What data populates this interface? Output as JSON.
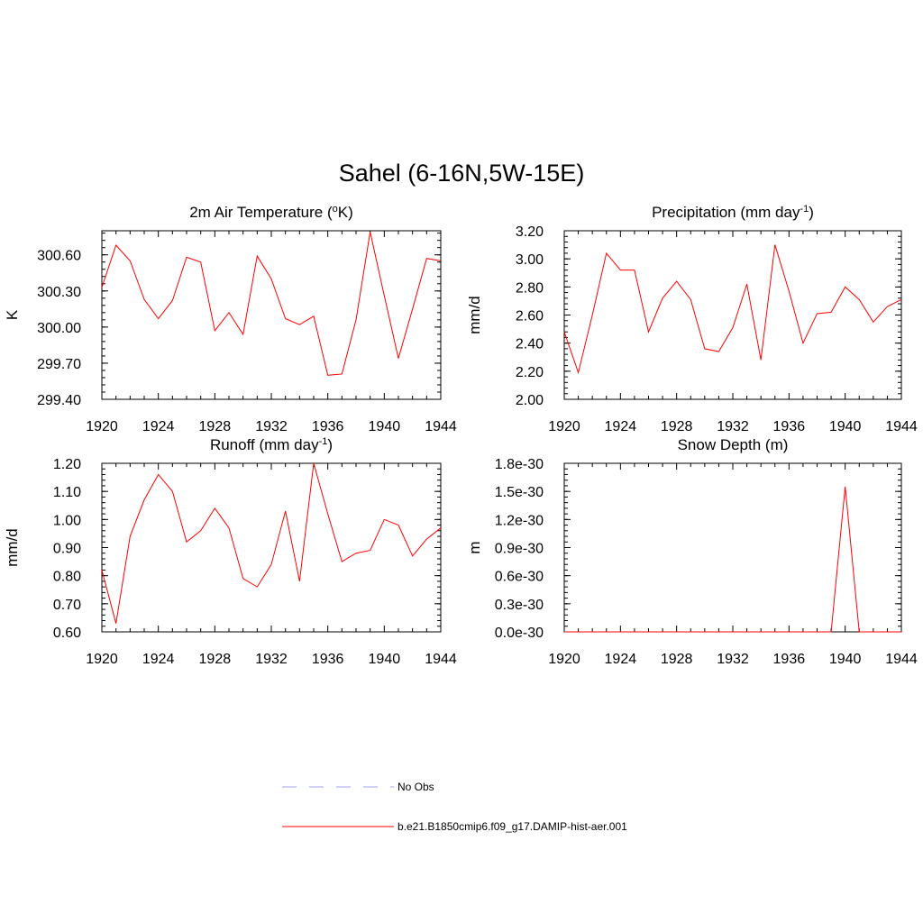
{
  "title": "Sahel (6-16N,5W-15E)",
  "chart_data": [
    {
      "type": "line",
      "title": "2m Air Temperature (oK)",
      "title_parts": [
        {
          "t": "2m Air Temperature ("
        },
        {
          "t": "o",
          "sup": true
        },
        {
          "t": "K)"
        }
      ],
      "ylabel": "K",
      "xlim": [
        1920,
        1944
      ],
      "ylim": [
        299.4,
        300.8
      ],
      "xticks": [
        1920,
        1924,
        1928,
        1932,
        1936,
        1940,
        1944
      ],
      "xtick_labels": [
        "1920",
        "1924",
        "1928",
        "1932",
        "1936",
        "1940",
        "1944"
      ],
      "yticks": [
        299.4,
        299.7,
        300.0,
        300.3,
        300.6
      ],
      "ytick_labels": [
        "299.40",
        "299.70",
        "300.00",
        "300.30",
        "300.60"
      ],
      "x": [
        1920,
        1921,
        1922,
        1923,
        1924,
        1925,
        1926,
        1927,
        1928,
        1929,
        1930,
        1931,
        1932,
        1933,
        1934,
        1935,
        1936,
        1937,
        1938,
        1939,
        1940,
        1941,
        1942,
        1943,
        1944
      ],
      "series": [
        {
          "color": "#ff0000",
          "values": [
            300.33,
            300.68,
            300.55,
            300.23,
            300.07,
            300.22,
            300.58,
            300.54,
            299.97,
            300.12,
            299.94,
            300.59,
            300.4,
            300.07,
            300.02,
            300.09,
            299.6,
            299.61,
            300.06,
            300.79,
            300.26,
            299.74,
            300.15,
            300.57,
            300.55
          ]
        }
      ]
    },
    {
      "type": "line",
      "title": "Precipitation (mm day-1)",
      "title_parts": [
        {
          "t": "Precipitation (mm day"
        },
        {
          "t": "-1",
          "sup": true
        },
        {
          "t": ")"
        }
      ],
      "ylabel": "mm/d",
      "xlim": [
        1920,
        1944
      ],
      "ylim": [
        2.0,
        3.2
      ],
      "xticks": [
        1920,
        1924,
        1928,
        1932,
        1936,
        1940,
        1944
      ],
      "xtick_labels": [
        "1920",
        "1924",
        "1928",
        "1932",
        "1936",
        "1940",
        "1944"
      ],
      "yticks": [
        2.0,
        2.2,
        2.4,
        2.6,
        2.8,
        3.0,
        3.2
      ],
      "ytick_labels": [
        "2.00",
        "2.20",
        "2.40",
        "2.60",
        "2.80",
        "3.00",
        "3.20"
      ],
      "x": [
        1920,
        1921,
        1922,
        1923,
        1924,
        1925,
        1926,
        1927,
        1928,
        1929,
        1930,
        1931,
        1932,
        1933,
        1934,
        1935,
        1936,
        1937,
        1938,
        1939,
        1940,
        1941,
        1942,
        1943,
        1944
      ],
      "series": [
        {
          "color": "#ff0000",
          "values": [
            2.48,
            2.19,
            2.6,
            3.04,
            2.92,
            2.92,
            2.48,
            2.72,
            2.84,
            2.71,
            2.36,
            2.34,
            2.51,
            2.82,
            2.28,
            3.1,
            2.77,
            2.4,
            2.61,
            2.62,
            2.8,
            2.71,
            2.55,
            2.66,
            2.71
          ]
        }
      ]
    },
    {
      "type": "line",
      "title": "Runoff (mm day-1)",
      "title_parts": [
        {
          "t": "Runoff (mm day"
        },
        {
          "t": "-1",
          "sup": true
        },
        {
          "t": ")"
        }
      ],
      "ylabel": "mm/d",
      "xlim": [
        1920,
        1944
      ],
      "ylim": [
        0.6,
        1.2
      ],
      "xticks": [
        1920,
        1924,
        1928,
        1932,
        1936,
        1940,
        1944
      ],
      "xtick_labels": [
        "1920",
        "1924",
        "1928",
        "1932",
        "1936",
        "1940",
        "1944"
      ],
      "yticks": [
        0.6,
        0.7,
        0.8,
        0.9,
        1.0,
        1.1,
        1.2
      ],
      "ytick_labels": [
        "0.60",
        "0.70",
        "0.80",
        "0.90",
        "1.00",
        "1.10",
        "1.20"
      ],
      "x": [
        1920,
        1921,
        1922,
        1923,
        1924,
        1925,
        1926,
        1927,
        1928,
        1929,
        1930,
        1931,
        1932,
        1933,
        1934,
        1935,
        1936,
        1937,
        1938,
        1939,
        1940,
        1941,
        1942,
        1943,
        1944
      ],
      "series": [
        {
          "color": "#ff0000",
          "values": [
            0.82,
            0.63,
            0.94,
            1.07,
            1.16,
            1.1,
            0.92,
            0.96,
            1.04,
            0.97,
            0.79,
            0.76,
            0.84,
            1.03,
            0.78,
            1.2,
            1.02,
            0.85,
            0.88,
            0.89,
            1.0,
            0.98,
            0.87,
            0.93,
            0.97
          ]
        }
      ]
    },
    {
      "type": "line",
      "title": "Snow Depth (m)",
      "title_parts": [
        {
          "t": "Snow Depth (m)"
        }
      ],
      "ylabel": "m",
      "xlim": [
        1920,
        1944
      ],
      "ylim": [
        0,
        1.8e-30
      ],
      "xticks": [
        1920,
        1924,
        1928,
        1932,
        1936,
        1940,
        1944
      ],
      "xtick_labels": [
        "1920",
        "1924",
        "1928",
        "1932",
        "1936",
        "1940",
        "1944"
      ],
      "yticks": [
        0,
        3e-31,
        6e-31,
        9e-31,
        1.2e-30,
        1.5e-30,
        1.8e-30
      ],
      "ytick_labels": [
        "0.0e-30",
        "0.3e-30",
        "0.6e-30",
        "0.9e-30",
        "1.2e-30",
        "1.5e-30",
        "1.8e-30"
      ],
      "x": [
        1920,
        1921,
        1922,
        1923,
        1924,
        1925,
        1926,
        1927,
        1928,
        1929,
        1930,
        1931,
        1932,
        1933,
        1934,
        1935,
        1936,
        1937,
        1938,
        1939,
        1940,
        1941,
        1942,
        1943,
        1944
      ],
      "series": [
        {
          "color": "#ff0000",
          "values": [
            0,
            0,
            0,
            0,
            0,
            0,
            0,
            0,
            0,
            0,
            0,
            0,
            0,
            0,
            0,
            0,
            0,
            0,
            0,
            0,
            1.55e-30,
            0,
            0,
            0,
            0
          ]
        }
      ]
    }
  ],
  "legend": [
    {
      "label": "No Obs",
      "color": "#a0a0ff",
      "style": "dashed"
    },
    {
      "label": "b.e21.B1850cmip6.f09_g17.DAMIP-hist-aer.001",
      "color": "#ff0000",
      "style": "solid"
    }
  ]
}
